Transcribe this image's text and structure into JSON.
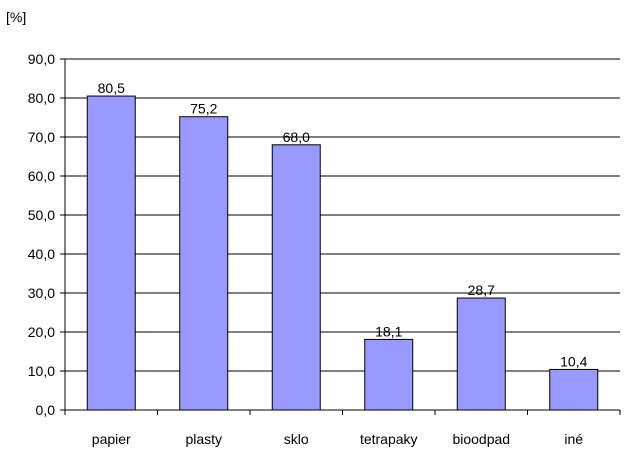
{
  "colors": {
    "bar_fill": "#9999ff",
    "bar_stroke": "#000000",
    "grid": "#000000",
    "background": "#ffffff"
  },
  "chart_data": {
    "type": "bar",
    "unit_label": "[%]",
    "categories": [
      "papier",
      "plasty",
      "sklo",
      "tetrapaky",
      "bioodpad",
      "iné"
    ],
    "values": [
      80.5,
      75.2,
      68.0,
      18.1,
      28.7,
      10.4
    ],
    "value_labels": [
      "80,5",
      "75,2",
      "68,0",
      "18,1",
      "28,7",
      "10,4"
    ],
    "y_ticks": [
      "0,0",
      "10,0",
      "20,0",
      "30,0",
      "40,0",
      "50,0",
      "60,0",
      "70,0",
      "80,0",
      "90,0"
    ],
    "ylim": [
      0,
      90
    ],
    "y_tick_step": 10,
    "grid": true,
    "legend": "none"
  }
}
